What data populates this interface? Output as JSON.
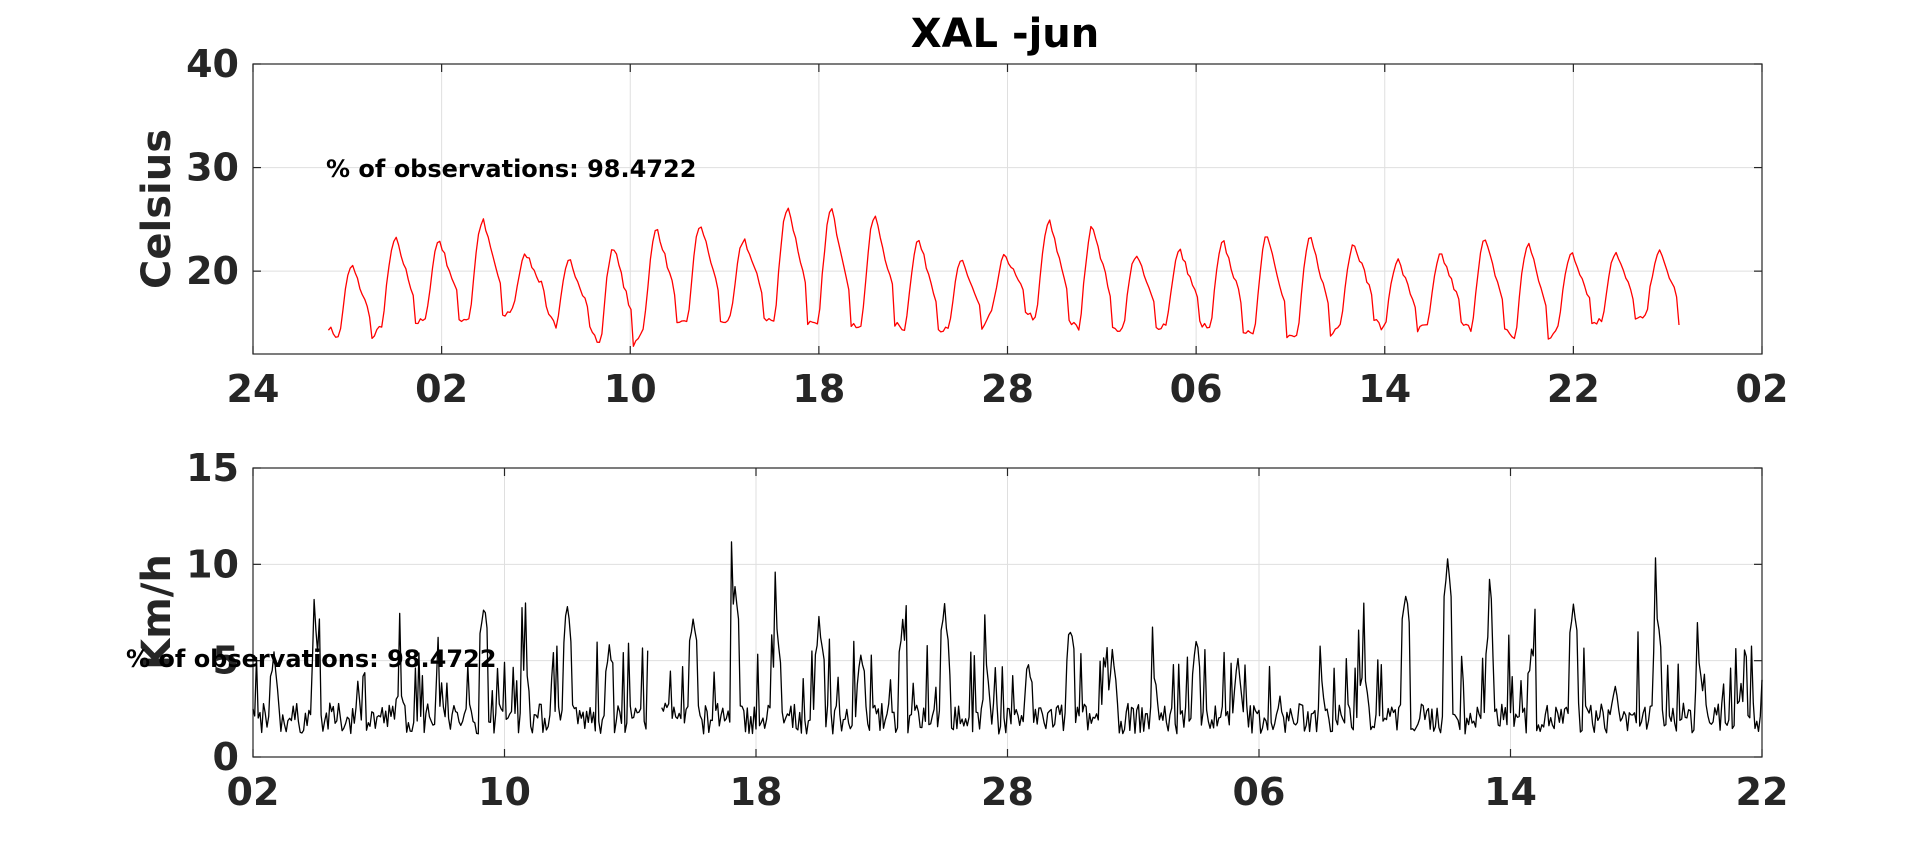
{
  "figure_title": "XAL -jun",
  "chart_data": [
    {
      "type": "line",
      "ylabel": "Celsius",
      "ylim": [
        12,
        40
      ],
      "yticks": [
        "20",
        "30",
        "40"
      ],
      "xticks": [
        "24",
        "02",
        "10",
        "18",
        "28",
        "06",
        "14",
        "22",
        "02"
      ],
      "xlim": [
        0,
        64
      ],
      "grid": true,
      "color": "#ff0000",
      "annotation": "% of observations: 98.4722",
      "series": [
        {
          "peaks": [
            20.5,
            23.1,
            23.0,
            24.9,
            21.6,
            21.0,
            22.4,
            24.1,
            24.5,
            23.1,
            26.3,
            26.0,
            25.3,
            23.0,
            21.0,
            21.5,
            24.8,
            24.4,
            21.6,
            22.0,
            22.8,
            23.6,
            23.2,
            22.7,
            21.1,
            21.6,
            23.0,
            22.7,
            21.9,
            21.8,
            21.9
          ],
          "troughs": [
            13.4,
            15.0,
            15.3,
            15.5,
            16.5,
            14.5,
            12.7,
            14.8,
            15.0,
            15.5,
            15.1,
            14.6,
            14.9,
            14.4,
            14.3,
            16.2,
            15.2,
            14.3,
            14.5,
            15.0,
            14.3,
            13.6,
            13.7,
            15.3,
            14.3,
            14.9,
            14.4
          ],
          "start": 14.6,
          "end": 14.8
        }
      ]
    },
    {
      "type": "line",
      "ylabel": "Km/h",
      "ylim": [
        0,
        15
      ],
      "yticks": [
        "0",
        "5",
        "10",
        "15"
      ],
      "xticks": [
        "02",
        "10",
        "18",
        "28",
        "06",
        "14",
        "22"
      ],
      "xlim": [
        0,
        48
      ],
      "grid": true,
      "color": "#000000",
      "annotation": "% of observations: 98.4722",
      "series": [
        {
          "peaks": [
            5.4,
            6.2,
            3.6,
            4.3,
            3.7,
            8.0,
            5.3,
            7.8,
            6.0,
            7.0,
            7.3,
            8.6,
            6.4,
            6.9,
            5.6,
            7.0,
            7.7,
            4.5,
            5.0,
            6.8,
            5.3,
            4.4,
            6.2,
            4.9,
            3.4,
            4.2,
            5.0,
            8.4,
            10.1,
            6.6,
            5.6,
            7.8,
            4.0,
            7.3,
            4.9,
            4.0
          ],
          "gaps": [
            [
              12.6,
              13.0
            ]
          ]
        }
      ]
    }
  ]
}
